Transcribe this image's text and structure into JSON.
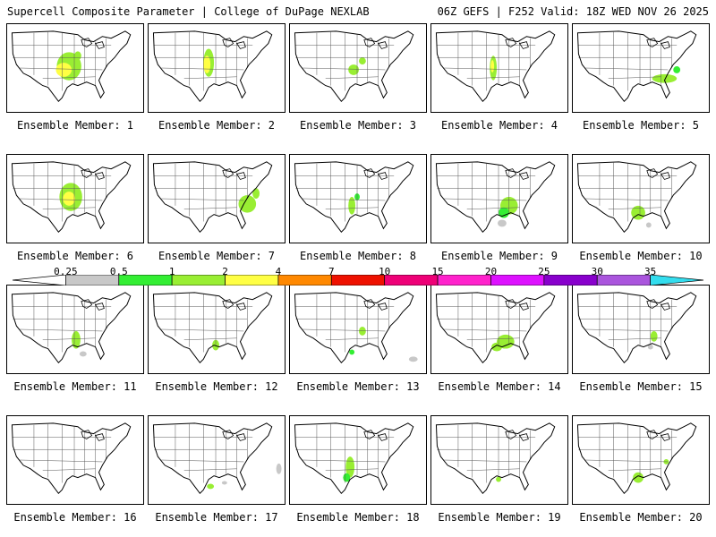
{
  "header": {
    "left_title": "Supercell Composite Parameter | College of DuPage NEXLAB",
    "right_title": "06Z GEFS | F252 Valid: 18Z WED NOV 26 2025"
  },
  "panels": [
    {
      "label": "Ensemble Member: 1",
      "signal_region": "Southern Plains to Mid-Mississippi Valley",
      "max_category": "4"
    },
    {
      "label": "Ensemble Member: 2",
      "signal_region": "Southern Plains",
      "max_category": "4"
    },
    {
      "label": "Ensemble Member: 3",
      "signal_region": "Arklatex",
      "max_category": "2"
    },
    {
      "label": "Ensemble Member: 4",
      "signal_region": "Lower Mississippi Valley",
      "max_category": "4"
    },
    {
      "label": "Ensemble Member: 5",
      "signal_region": "Southeast to Carolinas",
      "max_category": "2"
    },
    {
      "label": "Ensemble Member: 6",
      "signal_region": "Southern Plains to Ozarks",
      "max_category": "4"
    },
    {
      "label": "Ensemble Member: 7",
      "signal_region": "Southeast to Mid-Atlantic",
      "max_category": "2"
    },
    {
      "label": "Ensemble Member: 8",
      "signal_region": "Lower Mississippi Valley",
      "max_category": "4"
    },
    {
      "label": "Ensemble Member: 9",
      "signal_region": "Gulf Coast states",
      "max_category": "2"
    },
    {
      "label": "Ensemble Member: 10",
      "signal_region": "Deep South",
      "max_category": "2"
    },
    {
      "label": "Ensemble Member: 11",
      "signal_region": "East Texas",
      "max_category": "2"
    },
    {
      "label": "Ensemble Member: 12",
      "signal_region": "South Texas",
      "max_category": "1"
    },
    {
      "label": "Ensemble Member: 13",
      "signal_region": "Texas Gulf Coast",
      "max_category": "1"
    },
    {
      "label": "Ensemble Member: 14",
      "signal_region": "Gulf Coast",
      "max_category": "2"
    },
    {
      "label": "Ensemble Member: 15",
      "signal_region": "Florida",
      "max_category": "1"
    },
    {
      "label": "Ensemble Member: 16",
      "signal_region": "none",
      "max_category": "0"
    },
    {
      "label": "Ensemble Member: 17",
      "signal_region": "South Texas",
      "max_category": "1"
    },
    {
      "label": "Ensemble Member: 18",
      "signal_region": "East Texas",
      "max_category": "2"
    },
    {
      "label": "Ensemble Member: 19",
      "signal_region": "Southeast Texas",
      "max_category": "1"
    },
    {
      "label": "Ensemble Member: 20",
      "signal_region": "Texas Coast",
      "max_category": "2"
    }
  ],
  "colorbar": {
    "ticks": [
      "0.25",
      "0.5",
      "1",
      "2",
      "4",
      "7",
      "10",
      "15",
      "20",
      "25",
      "30",
      "35"
    ],
    "colors": [
      "#ffffff",
      "#c8c8c8",
      "#33ee33",
      "#99ee33",
      "#ffff44",
      "#ff8800",
      "#ee1100",
      "#ee0077",
      "#ff22cc",
      "#dd11ff",
      "#8800cc",
      "#aa55dd",
      "#33ddee"
    ]
  }
}
